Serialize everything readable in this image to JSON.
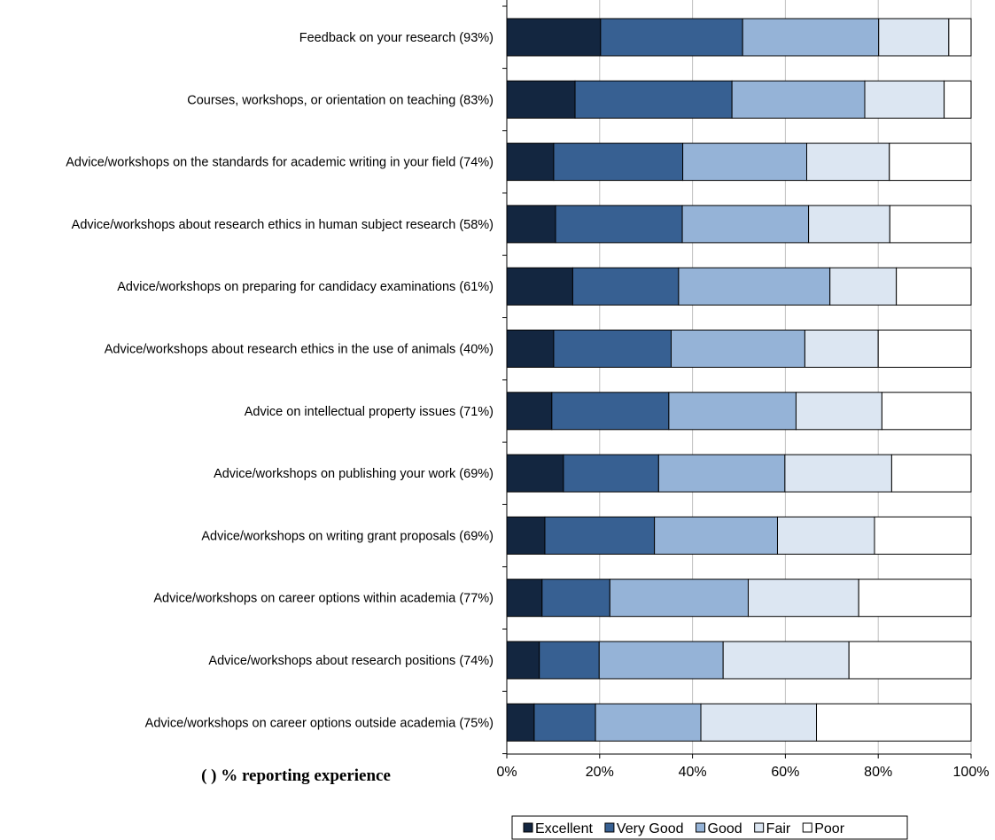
{
  "chart_data": {
    "type": "bar",
    "orientation": "horizontal",
    "stacked": true,
    "categories": [
      "Feedback on your research (93%)",
      "Courses, workshops, or orientation on teaching (83%)",
      "Advice/workshops on the standards for academic writing in your field (74%)",
      "Advice/workshops about research ethics in human subject research (58%)",
      "Advice/workshops on preparing for candidacy examinations (61%)",
      "Advice/workshops about research ethics in the use of animals (40%)",
      "Advice on intellectual property issues (71%)",
      "Advice/workshops on publishing your work (69%)",
      "Advice/workshops on writing grant proposals (69%)",
      "Advice/workshops on career options within academia (77%)",
      "Advice/workshops about research positions (74%)",
      "Advice/workshops on career options outside academia (75%)"
    ],
    "series": [
      {
        "name": "Excellent",
        "color": "#132640",
        "values": [
          20.2,
          14.7,
          10.1,
          10.5,
          14.2,
          10.1,
          9.7,
          12.2,
          8.2,
          7.6,
          7.0,
          5.9
        ]
      },
      {
        "name": "Very Good",
        "color": "#376092",
        "values": [
          30.6,
          33.8,
          27.8,
          27.3,
          22.8,
          25.3,
          25.2,
          20.5,
          23.6,
          14.6,
          12.9,
          13.2
        ]
      },
      {
        "name": "Good",
        "color": "#95b3d7",
        "values": [
          29.3,
          28.6,
          26.7,
          27.2,
          32.6,
          28.8,
          27.4,
          27.2,
          26.5,
          29.8,
          26.7,
          22.7
        ]
      },
      {
        "name": "Fair",
        "color": "#dce6f2",
        "values": [
          15.1,
          17.1,
          17.8,
          17.5,
          14.3,
          15.8,
          18.5,
          23.0,
          20.9,
          23.8,
          27.1,
          24.9
        ]
      },
      {
        "name": "Poor",
        "color": "#ffffff",
        "values": [
          4.8,
          5.8,
          17.6,
          17.5,
          16.1,
          20.0,
          19.2,
          17.1,
          20.8,
          24.2,
          26.3,
          33.3
        ]
      }
    ],
    "xlim": [
      0,
      100
    ],
    "xticks": [
      "0%",
      "20%",
      "40%",
      "60%",
      "80%",
      "100%"
    ],
    "grid": true,
    "legend_position": "bottom",
    "annotation": "( ) % reporting experience"
  }
}
